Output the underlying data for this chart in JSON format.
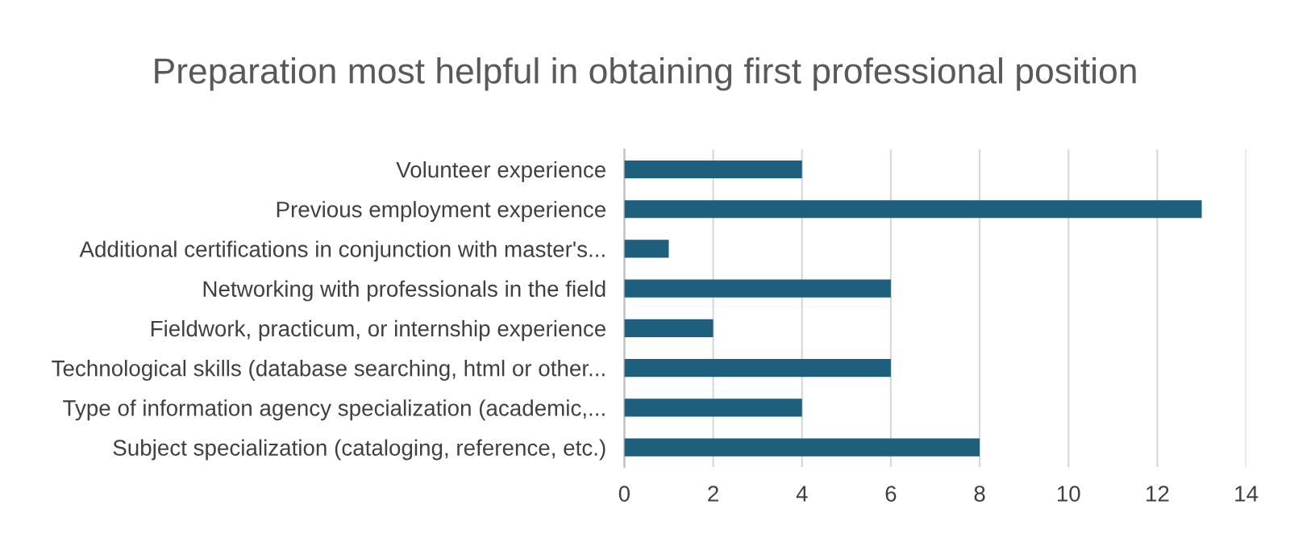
{
  "chart_data": {
    "type": "bar",
    "orientation": "horizontal",
    "title": "Preparation most helpful in obtaining first professional position",
    "categories": [
      "Volunteer experience",
      "Previous employment experience",
      "Additional certifications in conjunction with master's...",
      "Networking with professionals in the field",
      "Fieldwork, practicum, or internship experience",
      "Technological skills (database searching, html or other...",
      "Type of information agency specialization (academic,...",
      "Subject specialization (cataloging, reference, etc.)"
    ],
    "values": [
      4,
      13,
      1,
      6,
      2,
      6,
      4,
      8
    ],
    "color": "#1f5f7e",
    "xlim": [
      0,
      14
    ],
    "xticks": [
      0,
      2,
      4,
      6,
      8,
      10,
      12,
      14
    ],
    "grid": "x",
    "legend": false
  }
}
